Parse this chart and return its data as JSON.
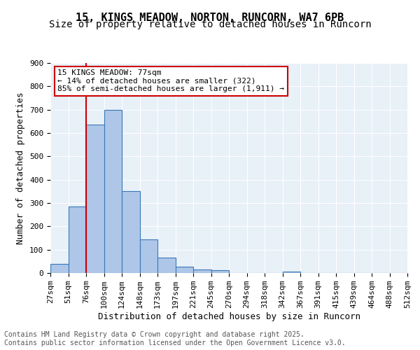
{
  "title_line1": "15, KINGS MEADOW, NORTON, RUNCORN, WA7 6PB",
  "title_line2": "Size of property relative to detached houses in Runcorn",
  "xlabel": "Distribution of detached houses by size in Runcorn",
  "ylabel": "Number of detached properties",
  "bar_values": [
    40,
    285,
    635,
    700,
    350,
    145,
    65,
    28,
    15,
    12,
    0,
    0,
    0,
    7,
    0,
    0,
    0,
    0,
    0,
    0
  ],
  "bin_labels": [
    "27sqm",
    "51sqm",
    "76sqm",
    "100sqm",
    "124sqm",
    "148sqm",
    "173sqm",
    "197sqm",
    "221sqm",
    "245sqm",
    "270sqm",
    "294sqm",
    "318sqm",
    "342sqm",
    "367sqm",
    "391sqm",
    "415sqm",
    "439sqm",
    "464sqm",
    "488sqm",
    "512sqm"
  ],
  "bar_color": "#aec6e8",
  "bar_edge_color": "#3a78b5",
  "bg_color": "#e8f0f8",
  "vline_x": 2,
  "vline_color": "#cc0000",
  "annotation_text": "15 KINGS MEADOW: 77sqm\n← 14% of detached houses are smaller (322)\n85% of semi-detached houses are larger (1,911) →",
  "annotation_box_color": "#cc0000",
  "ylim": [
    0,
    900
  ],
  "yticks": [
    0,
    100,
    200,
    300,
    400,
    500,
    600,
    700,
    800,
    900
  ],
  "footer_text": "Contains HM Land Registry data © Crown copyright and database right 2025.\nContains public sector information licensed under the Open Government Licence v3.0.",
  "title_fontsize": 11,
  "subtitle_fontsize": 10,
  "tick_fontsize": 8,
  "label_fontsize": 9,
  "annotation_fontsize": 8,
  "footer_fontsize": 7
}
